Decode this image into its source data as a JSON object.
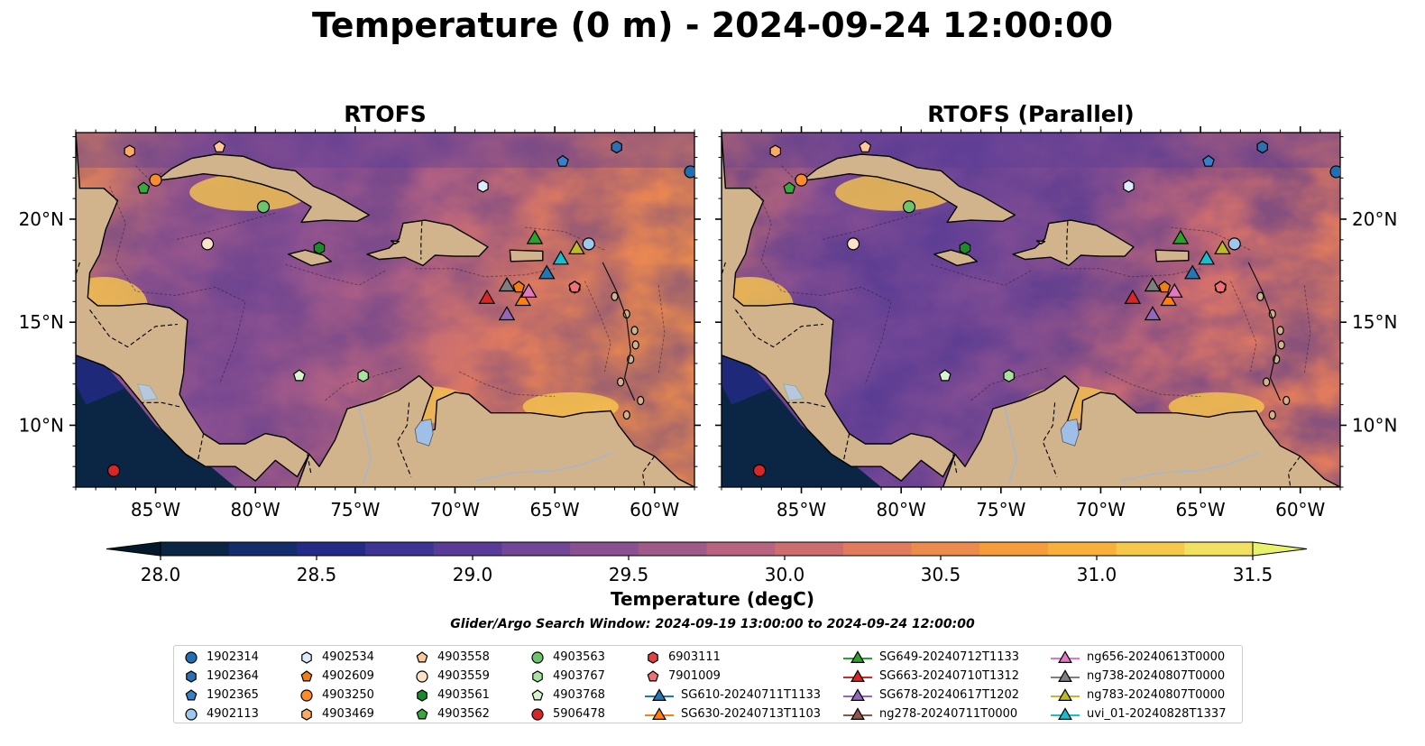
{
  "title": "Temperature (0 m) - 2024-09-24 12:00:00",
  "panels": [
    {
      "title": "RTOFS"
    },
    {
      "title": "RTOFS (Parallel)"
    }
  ],
  "axes": {
    "lon_range": [
      -89,
      -58
    ],
    "lat_range": [
      7,
      24.2
    ],
    "x_ticks": [
      {
        "value": -85,
        "label": "85°W"
      },
      {
        "value": -80,
        "label": "80°W"
      },
      {
        "value": -75,
        "label": "75°W"
      },
      {
        "value": -70,
        "label": "70°W"
      },
      {
        "value": -65,
        "label": "65°W"
      },
      {
        "value": -60,
        "label": "60°W"
      }
    ],
    "y_ticks": [
      {
        "value": 10,
        "label": "10°N"
      },
      {
        "value": 15,
        "label": "15°N"
      },
      {
        "value": 20,
        "label": "20°N"
      }
    ]
  },
  "colorbar": {
    "label": "Temperature (degC)",
    "range": [
      28.0,
      31.5
    ],
    "ticks": [
      "28.0",
      "28.5",
      "29.0",
      "29.5",
      "30.0",
      "30.5",
      "31.0",
      "31.5"
    ],
    "colors": [
      "#0b2545",
      "#142e6b",
      "#232b86",
      "#3e3494",
      "#593c98",
      "#724797",
      "#8a5091",
      "#a05a8a",
      "#b86480",
      "#ce6d70",
      "#e07b5e",
      "#ec8b4d",
      "#f59c3d",
      "#f8b03c",
      "#f6c74d",
      "#f2e062"
    ],
    "over_color": "#e8f26a",
    "under_color": "#03192b"
  },
  "search_window": "Glider/Argo Search Window: 2024-09-19 13:00:00 to 2024-09-24 12:00:00",
  "land_color": "#d2b48c",
  "legend": [
    {
      "label": "1902314",
      "marker": "circle",
      "color": "#1f6fb4"
    },
    {
      "label": "1902364",
      "marker": "hexagon",
      "color": "#2e6fb0"
    },
    {
      "label": "1902365",
      "marker": "pentagon",
      "color": "#3a7fc8"
    },
    {
      "label": "4902113",
      "marker": "circle",
      "color": "#9ec8ee"
    },
    {
      "label": "4902534",
      "marker": "hexagon",
      "color": "#dcecfb"
    },
    {
      "label": "4902609",
      "marker": "pentagon",
      "color": "#f07f12"
    },
    {
      "label": "4903250",
      "marker": "circle",
      "color": "#fb8c2a"
    },
    {
      "label": "4903469",
      "marker": "hexagon",
      "color": "#fbaa62"
    },
    {
      "label": "4903558",
      "marker": "pentagon",
      "color": "#fcc898"
    },
    {
      "label": "4903559",
      "marker": "circle",
      "color": "#fde0c8"
    },
    {
      "label": "4903561",
      "marker": "hexagon",
      "color": "#1a8a2a"
    },
    {
      "label": "4903562",
      "marker": "pentagon",
      "color": "#37aa3d"
    },
    {
      "label": "4903563",
      "marker": "circle",
      "color": "#6cc46c"
    },
    {
      "label": "4903767",
      "marker": "hexagon",
      "color": "#a8e2a0"
    },
    {
      "label": "4903768",
      "marker": "pentagon",
      "color": "#d8f4cf"
    },
    {
      "label": "5906478",
      "marker": "circle",
      "color": "#d62728"
    },
    {
      "label": "6903111",
      "marker": "hexagon",
      "color": "#e04346"
    },
    {
      "label": "7901009",
      "marker": "pentagon",
      "color": "#ee7078"
    },
    {
      "label": "SG610-20240711T1133",
      "marker": "triangle",
      "color": "#1f77b4"
    },
    {
      "label": "SG630-20240713T1103",
      "marker": "triangle",
      "color": "#ff7f0e"
    },
    {
      "label": "SG649-20240712T1133",
      "marker": "triangle",
      "color": "#2ca02c"
    },
    {
      "label": "SG663-20240710T1312",
      "marker": "triangle",
      "color": "#d62728"
    },
    {
      "label": "SG678-20240617T1202",
      "marker": "triangle",
      "color": "#9467bd"
    },
    {
      "label": "ng278-20240711T0000",
      "marker": "triangle",
      "color": "#8c564b"
    },
    {
      "label": "ng656-20240613T0000",
      "marker": "triangle",
      "color": "#e377c2"
    },
    {
      "label": "ng738-20240807T0000",
      "marker": "triangle",
      "color": "#7f7f7f"
    },
    {
      "label": "ng783-20240807T0000",
      "marker": "triangle",
      "color": "#bcbd22"
    },
    {
      "label": "uvi_01-20240828T1337",
      "marker": "triangle",
      "color": "#17becf"
    }
  ],
  "stations": [
    {
      "id": "1902314",
      "lon": -58.2,
      "lat": 22.3
    },
    {
      "id": "1902364",
      "lon": -61.9,
      "lat": 23.5
    },
    {
      "id": "1902365",
      "lon": -64.6,
      "lat": 22.8
    },
    {
      "id": "4902113",
      "lon": -63.3,
      "lat": 18.8
    },
    {
      "id": "4902534",
      "lon": -68.6,
      "lat": 21.6
    },
    {
      "id": "4902609",
      "lon": -66.8,
      "lat": 16.7
    },
    {
      "id": "4903250",
      "lon": -85.0,
      "lat": 21.9
    },
    {
      "id": "4903469",
      "lon": -86.3,
      "lat": 23.3
    },
    {
      "id": "4903558",
      "lon": -81.8,
      "lat": 23.5
    },
    {
      "id": "4903559",
      "lon": -82.4,
      "lat": 18.8
    },
    {
      "id": "4903561",
      "lon": -76.8,
      "lat": 18.6
    },
    {
      "id": "4903562",
      "lon": -85.6,
      "lat": 21.5
    },
    {
      "id": "4903563",
      "lon": -79.6,
      "lat": 20.6
    },
    {
      "id": "4903767",
      "lon": -74.6,
      "lat": 12.4
    },
    {
      "id": "4903768",
      "lon": -77.8,
      "lat": 12.4
    },
    {
      "id": "5906478",
      "lon": -87.1,
      "lat": 7.8
    },
    {
      "id": "6903111",
      "lon": -64.0,
      "lat": 16.7
    },
    {
      "id": "7901009",
      "lon": -64.0,
      "lat": 16.7
    },
    {
      "id": "SG610-20240711T1133",
      "lon": -65.4,
      "lat": 17.4
    },
    {
      "id": "SG630-20240713T1103",
      "lon": -66.6,
      "lat": 16.1
    },
    {
      "id": "SG649-20240712T1133",
      "lon": -66.0,
      "lat": 19.1
    },
    {
      "id": "SG663-20240710T1312",
      "lon": -68.4,
      "lat": 16.2
    },
    {
      "id": "SG678-20240617T1202",
      "lon": -67.4,
      "lat": 15.4
    },
    {
      "id": "ng278-20240711T0000",
      "lon": -67.4,
      "lat": 16.8
    },
    {
      "id": "ng656-20240613T0000",
      "lon": -66.3,
      "lat": 16.5
    },
    {
      "id": "ng738-20240807T0000",
      "lon": -67.4,
      "lat": 16.8
    },
    {
      "id": "ng783-20240807T0000",
      "lon": -63.9,
      "lat": 18.6
    },
    {
      "id": "uvi_01-20240828T1337",
      "lon": -64.7,
      "lat": 18.1
    }
  ]
}
